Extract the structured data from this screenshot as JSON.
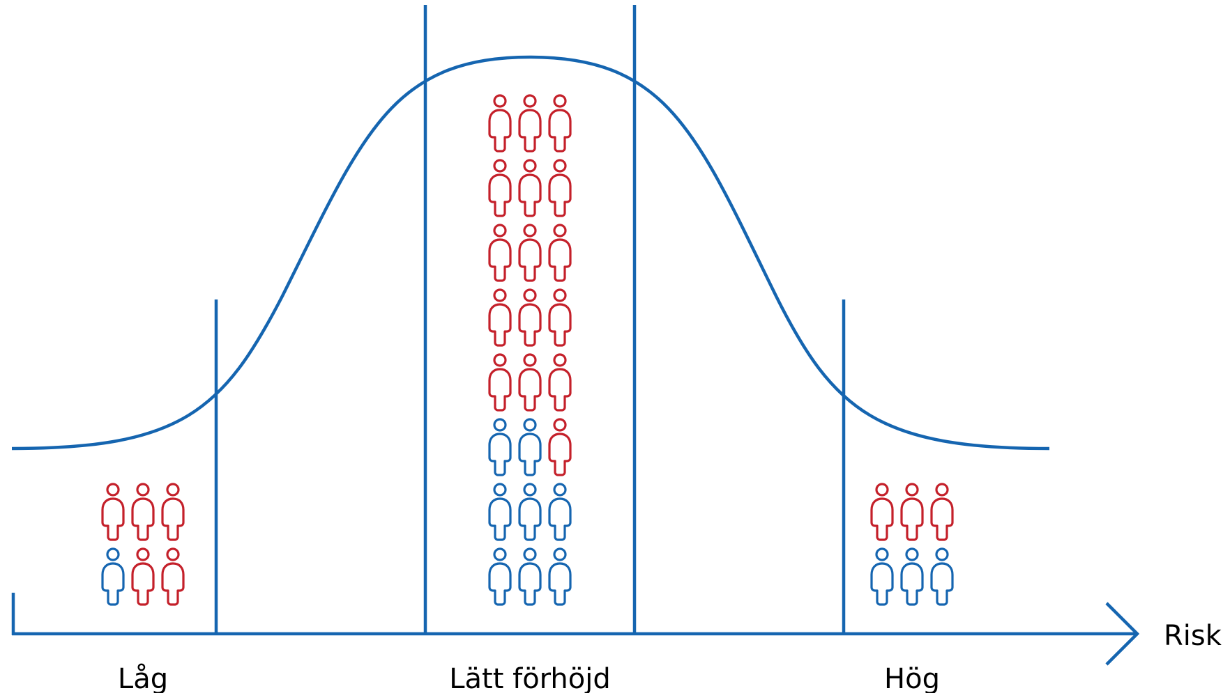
{
  "axis_label": "Risk",
  "categories": [
    {
      "label": "Låg",
      "rows": [
        [
          "red",
          "red",
          "red"
        ],
        [
          "blue",
          "red",
          "red"
        ]
      ]
    },
    {
      "label": "Lätt förhöjd",
      "rows": [
        [
          "red",
          "red",
          "red"
        ],
        [
          "red",
          "red",
          "red"
        ],
        [
          "red",
          "red",
          "red"
        ],
        [
          "red",
          "red",
          "red"
        ],
        [
          "red",
          "red",
          "red"
        ],
        [
          "blue",
          "blue",
          "red"
        ],
        [
          "blue",
          "blue",
          "blue"
        ],
        [
          "blue",
          "blue",
          "blue"
        ]
      ]
    },
    {
      "label": "Hög",
      "rows": [
        [
          "red",
          "red",
          "red"
        ],
        [
          "blue",
          "blue",
          "blue"
        ]
      ]
    }
  ],
  "colors": {
    "curve": "#1565b0",
    "axis": "#1565b0",
    "red": "#c4202a",
    "blue": "#1565b0"
  },
  "icon": "person-outline-icon"
}
